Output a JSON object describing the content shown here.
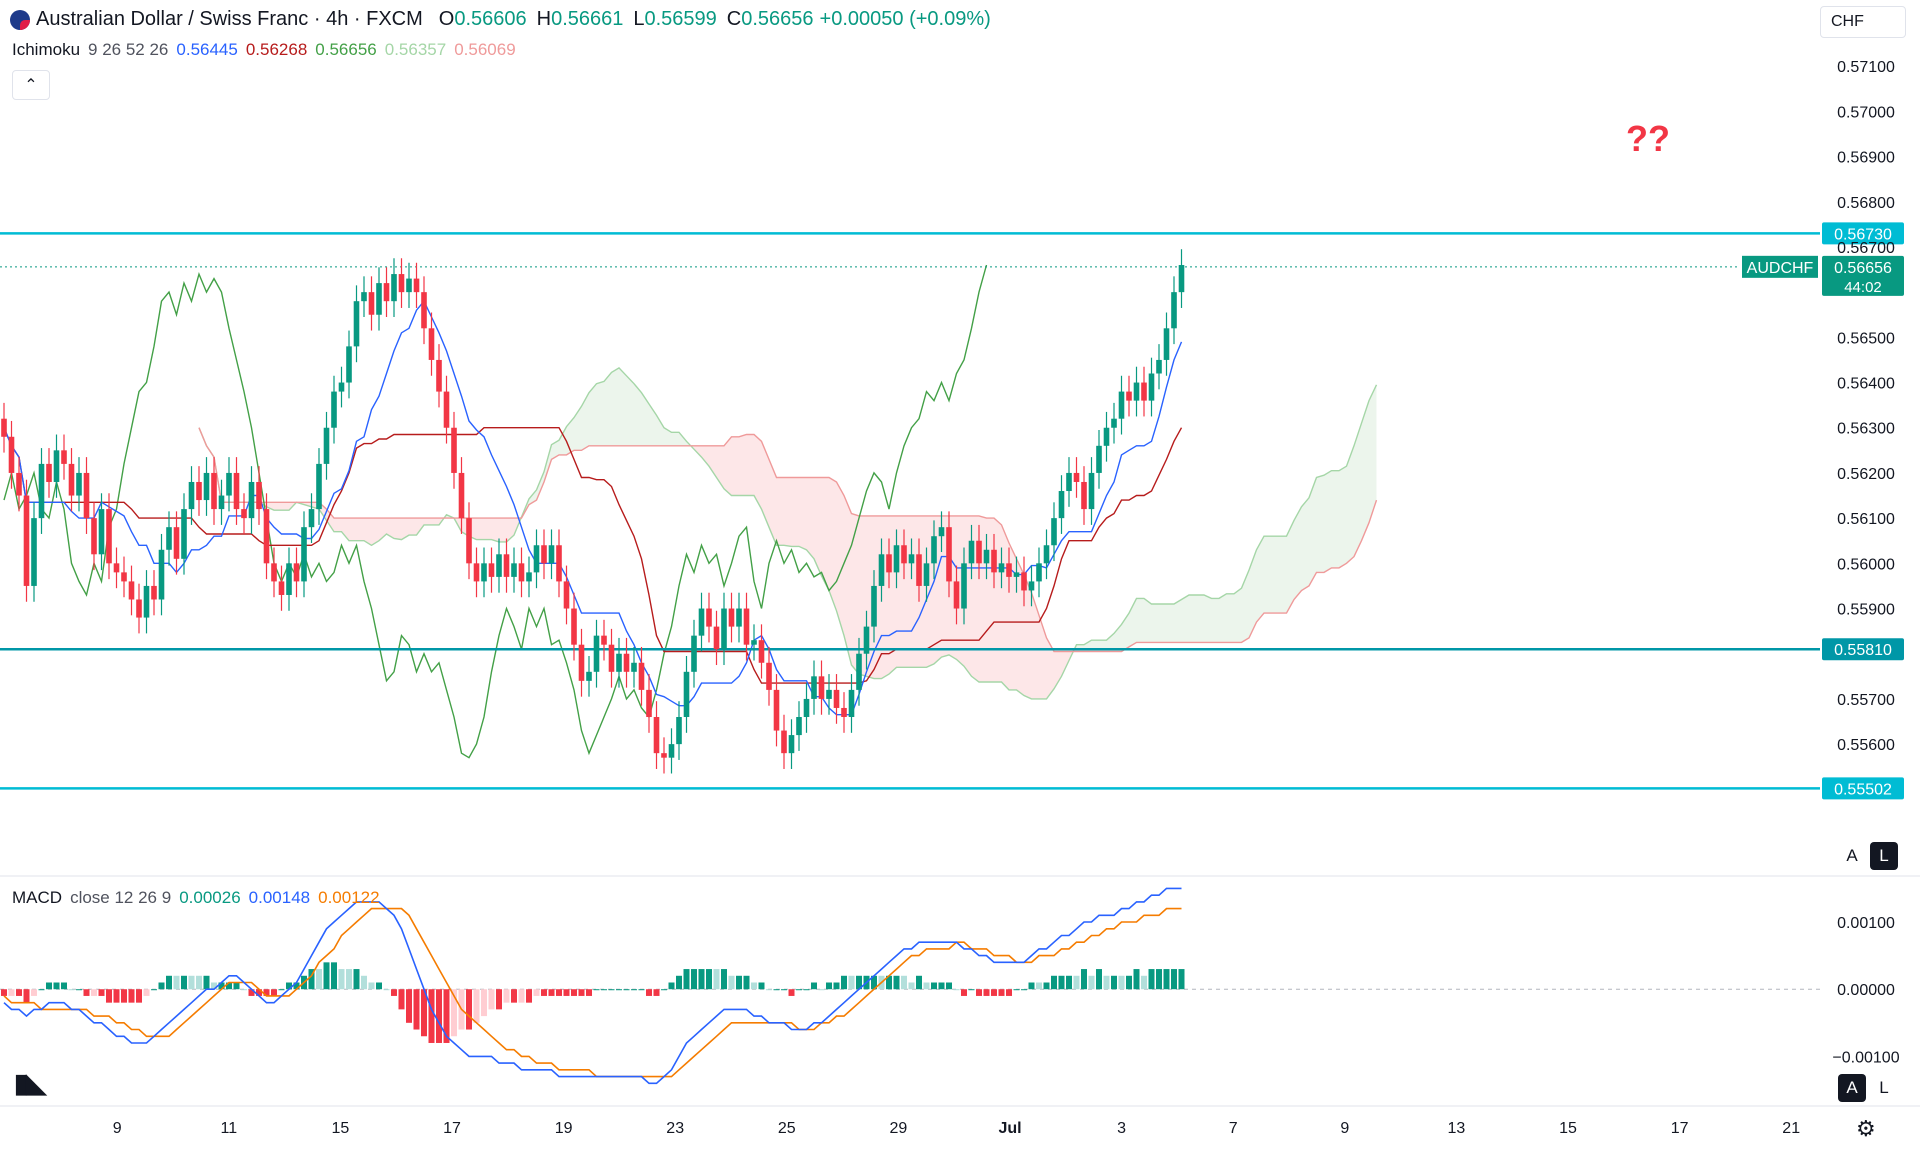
{
  "header": {
    "symbol_title": "Australian Dollar / Swiss Franc · 4h · FXCM",
    "ohlc": [
      {
        "label": "O",
        "value": "0.56606"
      },
      {
        "label": "H",
        "value": "0.56661"
      },
      {
        "label": "L",
        "value": "0.56599"
      },
      {
        "label": "C",
        "value": "0.56656"
      }
    ],
    "change": "+0.00050 (+0.09%)",
    "currency": "CHF",
    "collapse_icon": "chevron-up-icon"
  },
  "ichimoku": {
    "label": "Ichimoku",
    "params": "9 26 52 26",
    "values": [
      {
        "v": "0.56445",
        "color": "#2962ff"
      },
      {
        "v": "0.56268",
        "color": "#b71c1c"
      },
      {
        "v": "0.56656",
        "color": "#43a047"
      },
      {
        "v": "0.56357",
        "color": "#a5d6a7"
      },
      {
        "v": "0.56069",
        "color": "#ef9a9a"
      }
    ]
  },
  "macd_legend": {
    "label": "MACD",
    "params": "close 12 26 9",
    "values": [
      {
        "v": "0.00026",
        "color": "#089981"
      },
      {
        "v": "0.00148",
        "color": "#2962ff"
      },
      {
        "v": "0.00122",
        "color": "#f57c00"
      }
    ]
  },
  "annotation_text": "??",
  "scale_buttons": {
    "auto": "A",
    "log": "L"
  },
  "chart_data": {
    "type": "candlestick",
    "price_axis_ticks": [
      "0.57100",
      "0.57000",
      "0.56900",
      "0.56800",
      "0.56700",
      "0.56500",
      "0.56400",
      "0.56300",
      "0.56200",
      "0.56100",
      "0.56000",
      "0.55900",
      "0.55700",
      "0.55600"
    ],
    "ylim": [
      0.5541,
      0.5718
    ],
    "x_ticks": [
      {
        "label": "9",
        "t": 4
      },
      {
        "label": "11",
        "t": 16
      },
      {
        "label": "15",
        "t": 28
      },
      {
        "label": "17",
        "t": 40
      },
      {
        "label": "19",
        "t": 52
      },
      {
        "label": "23",
        "t": 64
      },
      {
        "label": "25",
        "t": 76
      },
      {
        "label": "29",
        "t": 88
      },
      {
        "label": "Jul",
        "t": 100,
        "bold": true
      },
      {
        "label": "3",
        "t": 112
      },
      {
        "label": "7",
        "t": 124
      },
      {
        "label": "9",
        "t": 136
      },
      {
        "label": "13",
        "t": 148
      },
      {
        "label": "15",
        "t": 160
      },
      {
        "label": "17",
        "t": 172
      },
      {
        "label": "21",
        "t": 184
      }
    ],
    "horizontal_levels": [
      {
        "value": 0.5673,
        "label": "0.56730",
        "color": "#00bcd4"
      },
      {
        "value": 0.5581,
        "label": "0.55810",
        "color": "#0097a7"
      },
      {
        "value": 0.55502,
        "label": "0.55502",
        "color": "#00bcd4"
      }
    ],
    "last_price": {
      "symbol": "AUDCHF",
      "value": 0.56656,
      "label": "0.56656",
      "countdown": "44:02"
    },
    "candles_close": [
      0.5628,
      0.562,
      0.5615,
      0.5595,
      0.561,
      0.5622,
      0.5618,
      0.5625,
      0.5622,
      0.5615,
      0.562,
      0.561,
      0.5602,
      0.5612,
      0.56,
      0.5598,
      0.5596,
      0.5592,
      0.5588,
      0.5595,
      0.5592,
      0.5603,
      0.5608,
      0.5601,
      0.5612,
      0.5618,
      0.5614,
      0.562,
      0.5612,
      0.5615,
      0.562,
      0.5612,
      0.561,
      0.5618,
      0.5612,
      0.56,
      0.5596,
      0.5593,
      0.56,
      0.5596,
      0.5608,
      0.5612,
      0.5622,
      0.563,
      0.5638,
      0.564,
      0.5648,
      0.5658,
      0.566,
      0.5655,
      0.5662,
      0.5658,
      0.5664,
      0.566,
      0.5663,
      0.566,
      0.5652,
      0.5645,
      0.5638,
      0.563,
      0.562,
      0.561,
      0.56,
      0.5596,
      0.56,
      0.5597,
      0.5602,
      0.5597,
      0.56,
      0.5596,
      0.5598,
      0.5604,
      0.56,
      0.5604,
      0.5596,
      0.559,
      0.5582,
      0.5574,
      0.5576,
      0.5584,
      0.5582,
      0.5576,
      0.558,
      0.5576,
      0.5578,
      0.5572,
      0.5566,
      0.5558,
      0.5557,
      0.556,
      0.5566,
      0.5576,
      0.5584,
      0.559,
      0.5586,
      0.5581,
      0.559,
      0.5586,
      0.559,
      0.5582,
      0.5583,
      0.5578,
      0.5572,
      0.5563,
      0.5558,
      0.5562,
      0.5566,
      0.557,
      0.5575,
      0.557,
      0.5572,
      0.5568,
      0.5566,
      0.5572,
      0.558,
      0.5586,
      0.5595,
      0.5602,
      0.5598,
      0.5604,
      0.56,
      0.5602,
      0.5595,
      0.56,
      0.5606,
      0.5608,
      0.5596,
      0.559,
      0.56,
      0.5605,
      0.56,
      0.5603,
      0.5598,
      0.56,
      0.5597,
      0.5598,
      0.5594,
      0.5596,
      0.56,
      0.5604,
      0.561,
      0.5616,
      0.562,
      0.5618,
      0.5612,
      0.562,
      0.5626,
      0.563,
      0.5632,
      0.5638,
      0.5636,
      0.564,
      0.5636,
      0.5642,
      0.5645,
      0.5652,
      0.566,
      0.5666
    ],
    "macd_axis_ticks": [
      "0.00100",
      "0.00000",
      "−0.00100"
    ],
    "macd_ylim": [
      -0.0015,
      0.0017
    ],
    "macd_line": [
      -0.0002,
      -0.0003,
      -0.0003,
      -0.0004,
      -0.0003,
      -0.0003,
      -0.0002,
      -0.0002,
      -0.0002,
      -0.0003,
      -0.0003,
      -0.0004,
      -0.0005,
      -0.0005,
      -0.0006,
      -0.0007,
      -0.0007,
      -0.0008,
      -0.0008,
      -0.0008,
      -0.0007,
      -0.0006,
      -0.0005,
      -0.0004,
      -0.0003,
      -0.0002,
      -0.0001,
      0.0,
      0.0,
      0.0001,
      0.0002,
      0.0002,
      0.0001,
      0.0,
      -0.0001,
      -0.0002,
      -0.0002,
      -0.0001,
      0.0,
      0.0001,
      0.0003,
      0.0005,
      0.0007,
      0.0009,
      0.001,
      0.0011,
      0.0012,
      0.0013,
      0.0013,
      0.0013,
      0.0013,
      0.0012,
      0.0011,
      0.0009,
      0.0006,
      0.0003,
      0.0,
      -0.0003,
      -0.0005,
      -0.0007,
      -0.0008,
      -0.0009,
      -0.001,
      -0.001,
      -0.001,
      -0.001,
      -0.0011,
      -0.0011,
      -0.0011,
      -0.0012,
      -0.0012,
      -0.0012,
      -0.0012,
      -0.0012,
      -0.0013,
      -0.0013,
      -0.0013,
      -0.0013,
      -0.0013,
      -0.0013,
      -0.0013,
      -0.0013,
      -0.0013,
      -0.0013,
      -0.0013,
      -0.0013,
      -0.0014,
      -0.0014,
      -0.0013,
      -0.0012,
      -0.001,
      -0.0008,
      -0.0007,
      -0.0006,
      -0.0005,
      -0.0004,
      -0.0003,
      -0.0003,
      -0.0003,
      -0.0003,
      -0.0004,
      -0.0004,
      -0.0005,
      -0.0005,
      -0.0005,
      -0.0006,
      -0.0006,
      -0.0006,
      -0.0005,
      -0.0005,
      -0.0004,
      -0.0003,
      -0.0002,
      -0.0001,
      0.0,
      0.0001,
      0.0002,
      0.0003,
      0.0004,
      0.0005,
      0.0006,
      0.0006,
      0.0007,
      0.0007,
      0.0007,
      0.0007,
      0.0007,
      0.0007,
      0.0006,
      0.0006,
      0.0005,
      0.0005,
      0.0004,
      0.0004,
      0.0004,
      0.0004,
      0.0004,
      0.0005,
      0.0006,
      0.0006,
      0.0007,
      0.0008,
      0.0008,
      0.0009,
      0.001,
      0.001,
      0.0011,
      0.0011,
      0.0011,
      0.0012,
      0.0012,
      0.0013,
      0.0013,
      0.0014,
      0.0014,
      0.0015,
      0.0015,
      0.0015
    ],
    "signal_line": [
      -0.0001,
      -0.0002,
      -0.0002,
      -0.0002,
      -0.0002,
      -0.0003,
      -0.0003,
      -0.0003,
      -0.0003,
      -0.0003,
      -0.0003,
      -0.0003,
      -0.0004,
      -0.0004,
      -0.0004,
      -0.0005,
      -0.0005,
      -0.0006,
      -0.0006,
      -0.0007,
      -0.0007,
      -0.0007,
      -0.0007,
      -0.0006,
      -0.0005,
      -0.0004,
      -0.0003,
      -0.0002,
      -0.0001,
      0.0,
      0.0001,
      0.0001,
      0.0001,
      0.0001,
      0.0,
      -0.0001,
      -0.0001,
      -0.0001,
      -0.0001,
      0.0,
      0.0001,
      0.0002,
      0.0004,
      0.0005,
      0.0006,
      0.0008,
      0.0009,
      0.001,
      0.0011,
      0.0012,
      0.0012,
      0.0012,
      0.0012,
      0.0012,
      0.0011,
      0.0009,
      0.0007,
      0.0005,
      0.0003,
      0.0001,
      -0.0001,
      -0.0003,
      -0.0004,
      -0.0005,
      -0.0006,
      -0.0007,
      -0.0008,
      -0.0009,
      -0.0009,
      -0.001,
      -0.001,
      -0.0011,
      -0.0011,
      -0.0011,
      -0.0012,
      -0.0012,
      -0.0012,
      -0.0012,
      -0.0012,
      -0.0013,
      -0.0013,
      -0.0013,
      -0.0013,
      -0.0013,
      -0.0013,
      -0.0013,
      -0.0013,
      -0.0013,
      -0.0013,
      -0.0013,
      -0.0012,
      -0.0011,
      -0.001,
      -0.0009,
      -0.0008,
      -0.0007,
      -0.0006,
      -0.0005,
      -0.0005,
      -0.0005,
      -0.0005,
      -0.0005,
      -0.0005,
      -0.0005,
      -0.0005,
      -0.0005,
      -0.0006,
      -0.0006,
      -0.0006,
      -0.0005,
      -0.0005,
      -0.0004,
      -0.0004,
      -0.0003,
      -0.0002,
      -0.0001,
      0.0,
      0.0001,
      0.0002,
      0.0003,
      0.0004,
      0.0005,
      0.0005,
      0.0006,
      0.0006,
      0.0006,
      0.0006,
      0.0007,
      0.0007,
      0.0006,
      0.0006,
      0.0006,
      0.0005,
      0.0005,
      0.0005,
      0.0004,
      0.0004,
      0.0004,
      0.0005,
      0.0005,
      0.0005,
      0.0006,
      0.0006,
      0.0007,
      0.0007,
      0.0008,
      0.0008,
      0.0009,
      0.0009,
      0.001,
      0.001,
      0.001,
      0.0011,
      0.0011,
      0.0011,
      0.0012,
      0.0012,
      0.0012
    ]
  }
}
